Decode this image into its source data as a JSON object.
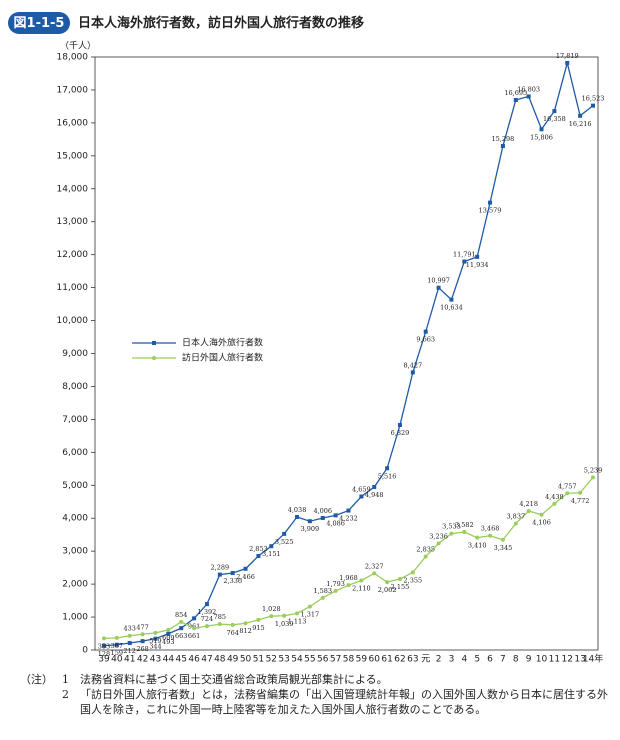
{
  "chart_data": {
    "type": "line",
    "badge": "図1-1-5",
    "title": "日本人海外旅行者数，訪日外国人旅行者数の推移",
    "y_label": "（千人）",
    "categories": [
      "39",
      "40",
      "41",
      "42",
      "43",
      "44",
      "45",
      "46",
      "47",
      "48",
      "49",
      "50",
      "51",
      "52",
      "53",
      "54",
      "55",
      "56",
      "57",
      "58",
      "59",
      "60",
      "61",
      "62",
      "63",
      "元",
      "2",
      "3",
      "4",
      "5",
      "6",
      "7",
      "8",
      "9",
      "10",
      "11",
      "12",
      "13",
      "14年"
    ],
    "ylim": [
      0,
      18000
    ],
    "yticks": [
      0,
      {
        "value": 1000,
        "label": "1,000"
      },
      {
        "value": 2000,
        "label": "2,000"
      },
      {
        "value": 3000,
        "label": "3,000"
      },
      {
        "value": 4000,
        "label": "4,000"
      },
      {
        "value": 5000,
        "label": "5,000"
      },
      {
        "value": 6000,
        "label": "6,000"
      },
      {
        "value": 7000,
        "label": "7,000"
      },
      {
        "value": 8000,
        "label": "8,000"
      },
      {
        "value": 9000,
        "label": "9,000"
      },
      {
        "value": 10000,
        "label": "10,000"
      },
      {
        "value": 11000,
        "label": "11,000"
      },
      {
        "value": 12000,
        "label": "12,000"
      },
      {
        "value": 13000,
        "label": "13,000"
      },
      {
        "value": 14000,
        "label": "14,000"
      },
      {
        "value": 15000,
        "label": "15,000"
      },
      {
        "value": 16000,
        "label": "16,000"
      },
      {
        "value": 17000,
        "label": "17,000"
      },
      {
        "value": 18000,
        "label": "18,000"
      }
    ],
    "legend": "left",
    "series": [
      {
        "name": "日本人海外旅行者数",
        "color": "#1f5aa6",
        "marker": "square",
        "values": [
          128,
          159,
          212,
          268,
          344,
          493,
          663,
          961,
          1392,
          2289,
          2336,
          2466,
          2853,
          3151,
          3525,
          4038,
          3909,
          4006,
          4086,
          4232,
          4659,
          4948,
          5516,
          6829,
          8427,
          9663,
          10997,
          10634,
          11791,
          11934,
          13579,
          15298,
          16695,
          16803,
          15806,
          16358,
          17819,
          16216,
          16523
        ],
        "value_labels": [
          "128",
          "159",
          "212",
          "268",
          "344",
          "493",
          "663",
          "961",
          "1,392",
          "2,289",
          "2,336",
          "2,466",
          "2,853",
          "3,151",
          "3,525",
          "4,038",
          "3,909",
          "4,006",
          "4,086",
          "4,232",
          "4,659",
          "4,948",
          "5,516",
          "6,829",
          "8,427",
          "9,663",
          "10,997",
          "10,634",
          "11,791",
          "11,934",
          "13,579",
          "15,298",
          "16,695",
          "16,803",
          "15,806",
          "16,358",
          "17,819",
          "16,216",
          "16,523"
        ]
      },
      {
        "name": "訪日外国人旅行者数",
        "color": "#9acd5a",
        "marker": "circle",
        "values": [
          353,
          367,
          433,
          477,
          519,
          609,
          854,
          661,
          724,
          785,
          764,
          812,
          915,
          1028,
          1039,
          1113,
          1317,
          1583,
          1793,
          1968,
          2110,
          2327,
          2062,
          2155,
          2355,
          2835,
          3236,
          3533,
          3582,
          3410,
          3468,
          3345,
          3837,
          4218,
          4106,
          4438,
          4757,
          4772,
          5239
        ],
        "value_labels": [
          "353",
          "367",
          "433",
          "477",
          "519",
          "609",
          "854",
          "661",
          "724",
          "785",
          "764",
          "812",
          "915",
          "1,028",
          "1,039",
          "1,113",
          "1,317",
          "1,583",
          "1,793",
          "1,968",
          "2,110",
          "2,327",
          "2,062",
          "2,155",
          "2,355",
          "2,835",
          "3,236",
          "3,533",
          "3,582",
          "3,410",
          "3,468",
          "3,345",
          "3,837",
          "4,218",
          "4,106",
          "4,438",
          "4,757",
          "4,772",
          "5,239"
        ]
      }
    ],
    "notes_lead": "（注）",
    "notes": [
      {
        "num": "1",
        "text": "法務省資料に基づく国土交通省総合政策局観光部集計による。"
      },
      {
        "num": "2",
        "text": "「訪日外国人旅行者数」とは，法務省編集の「出入国管理統計年報」の入国外国人数から日本に居住する外国人を除き，これに外国一時上陸客等を加えた入国外国人旅行者数のことである。"
      }
    ]
  }
}
